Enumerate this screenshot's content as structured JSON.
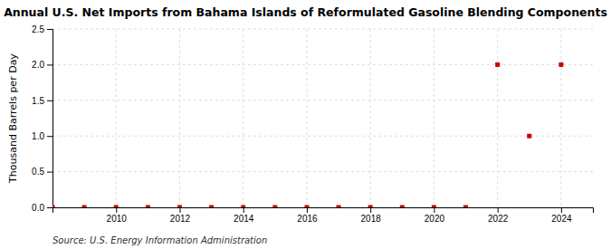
{
  "chart_data": {
    "type": "scatter",
    "title": "Annual U.S. Net Imports from Bahama Islands of Reformulated Gasoline Blending Components",
    "ylabel": "Thousand Barrels per Day",
    "annotations": [
      "Source: U.S. Energy Information Administration"
    ],
    "x": [
      2008,
      2009,
      2010,
      2011,
      2012,
      2013,
      2014,
      2015,
      2016,
      2017,
      2018,
      2019,
      2020,
      2021,
      2022,
      2023,
      2024
    ],
    "values": [
      0,
      0,
      0,
      0,
      0,
      0,
      0,
      0,
      0,
      0,
      0,
      0,
      0,
      0,
      2.0,
      1.0,
      2.0
    ],
    "color": "#cc0000",
    "marker": "square",
    "xlim": [
      2008.0,
      2025.0
    ],
    "ylim": [
      0,
      2.5
    ],
    "xticks": [
      2010,
      2012,
      2014,
      2016,
      2018,
      2020,
      2022,
      2024
    ],
    "yticks": [
      {
        "value": 0.0,
        "label": "0.0"
      },
      0.5,
      {
        "value": 1.0,
        "label": "1.0"
      },
      1.5,
      {
        "value": 2.0,
        "label": "2.0"
      },
      2.5
    ],
    "grid": true
  }
}
